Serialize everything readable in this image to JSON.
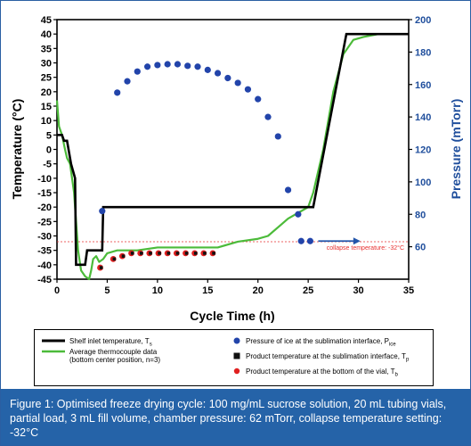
{
  "colors": {
    "shelf": "#000000",
    "thermocouple": "#4cbb3a",
    "pressure": "#2244aa",
    "sublimation_product": "#111111",
    "bottom_product": "#e02020",
    "collapse_line": "#e83030",
    "arrow": "#2255aa",
    "caption_bg": "#2563a8",
    "left_axis_text": "#000000",
    "right_axis_text": "#1f4e9c"
  },
  "caption": {
    "text": "Figure 1: Optimised freeze drying cycle: 100 mg/mL sucrose solution, 20 mL tubing vials, partial load, 3 mL fill volume, chamber pressure: 62 mTorr, collapse temperature setting: -32°C"
  },
  "legend": {
    "shelf": {
      "prefix": "Shelf inlet temperature, T",
      "sub": "s"
    },
    "thermo_line1": "Average thermocouple data",
    "thermo_line2": "(bottom center position, n=3)",
    "pressure": {
      "prefix": "Pressure of ice at the sublimation interface, P",
      "sub": "ice"
    },
    "product_sub": {
      "prefix": "Product temperature at the sublimation interface, T",
      "sub": "p"
    },
    "product_bottom": {
      "prefix": "Product temperature at the bottom of the vial, T",
      "sub": "b"
    }
  },
  "chart_data": {
    "type": "line",
    "xlabel": "Cycle Time (h)",
    "ylabel_left": "Temperature (°C)",
    "ylabel_right": "Pressure (mTorr)",
    "xlim": [
      0,
      35
    ],
    "ylim_left": [
      -45,
      45
    ],
    "ylim_right": [
      40,
      200
    ],
    "x_ticks": [
      "0",
      "5",
      "10",
      "15",
      "20",
      "25",
      "30",
      "35"
    ],
    "y_left_ticks": [
      "-45",
      "-40",
      "-35",
      "-30",
      "-25",
      "-20",
      "-15",
      "-10",
      "-5",
      "0",
      "5",
      "10",
      "15",
      "20",
      "25",
      "30",
      "35",
      "40",
      "45"
    ],
    "y_right_ticks": [
      "60",
      "80",
      "100",
      "120",
      "140",
      "160",
      "180",
      "200"
    ],
    "annotation": "collapse temperature: -32°C",
    "collapse_temperature": -32,
    "series": [
      {
        "name": "Shelf inlet temperature, Ts",
        "axis": "left",
        "x": [
          0,
          0.5,
          0.7,
          1.0,
          1.4,
          1.8,
          1.9,
          2.8,
          3.0,
          4.5,
          4.6,
          5.0,
          5.2,
          25.5,
          28.8,
          35
        ],
        "y": [
          5,
          5,
          3,
          3,
          -5,
          -10,
          -40,
          -40,
          -35,
          -35,
          -20,
          -20,
          -20,
          -20,
          40,
          40
        ]
      },
      {
        "name": "Average thermocouple data",
        "axis": "left",
        "x": [
          0,
          0.2,
          0.5,
          0.8,
          1.0,
          1.3,
          1.7,
          1.9,
          2.1,
          2.4,
          2.8,
          3.2,
          3.4,
          3.6,
          3.9,
          4.2,
          4.6,
          5,
          6,
          8,
          10,
          12,
          14,
          16,
          17,
          18,
          20,
          21,
          22,
          23,
          24,
          25,
          25.5,
          26.5,
          27.5,
          28.5,
          29.5,
          30.5,
          32,
          35
        ],
        "y": [
          17,
          8,
          5,
          0,
          -3,
          -5,
          -15,
          -25,
          -35,
          -42,
          -44,
          -45,
          -42,
          -38,
          -37,
          -39,
          -38,
          -36,
          -35,
          -35,
          -34,
          -34,
          -34,
          -34,
          -33,
          -32,
          -31,
          -30,
          -27,
          -24,
          -22,
          -20,
          -15,
          0,
          20,
          33,
          38,
          39,
          40,
          40
        ]
      },
      {
        "name": "Pressure of ice at the sublimation interface, Pice",
        "axis": "right",
        "type": "scatter",
        "x": [
          4.5,
          6,
          7,
          8,
          9,
          10,
          11,
          12,
          13,
          14,
          15,
          16,
          17,
          18,
          19,
          20,
          21,
          22,
          23,
          24
        ],
        "y": [
          82,
          155,
          162,
          168,
          171,
          172,
          172.5,
          172.5,
          171.5,
          171,
          169,
          167,
          164,
          161,
          157,
          151,
          140,
          128,
          95,
          80
        ]
      },
      {
        "name": "Product temperature at the sublimation interface, Tp",
        "axis": "left",
        "type": "scatter",
        "x": [
          4.4,
          5.7,
          6.6,
          7.5,
          8.4,
          9.3,
          10.2,
          11.1,
          12.0,
          12.9,
          13.8,
          14.7,
          15.6
        ],
        "y": [
          -41,
          -38,
          -37,
          -36,
          -36,
          -36,
          -36,
          -36,
          -36,
          -36,
          -36,
          -36,
          -36
        ]
      },
      {
        "name": "Product temperature at the bottom of the vial, Tb",
        "axis": "left",
        "type": "scatter",
        "x": [
          4.3,
          5.6,
          6.5,
          7.4,
          8.3,
          9.2,
          10.1,
          11.0,
          11.9,
          12.8,
          13.7,
          14.6,
          15.5
        ],
        "y": [
          -41,
          -38,
          -37,
          -36,
          -36,
          -36,
          -36,
          -36,
          -36,
          -36,
          -36,
          -36,
          -36
        ]
      }
    ]
  }
}
